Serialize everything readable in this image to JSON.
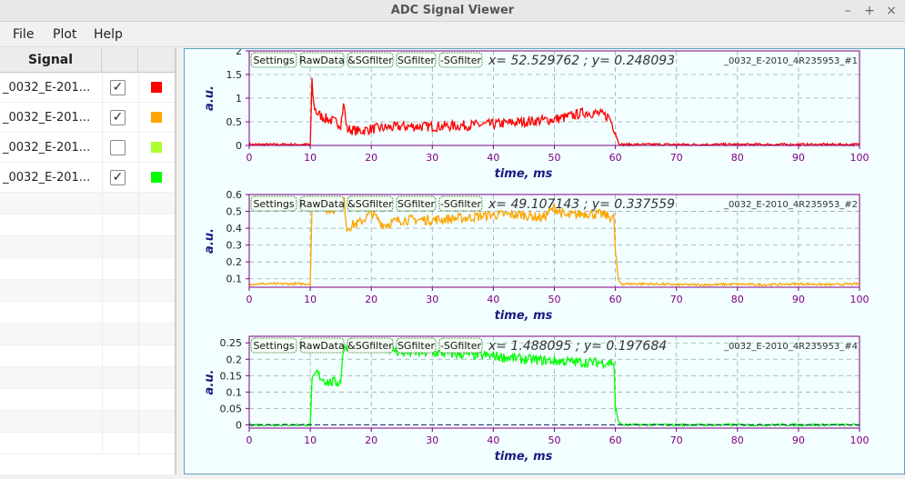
{
  "window": {
    "title": "ADC Signal Viewer"
  },
  "menu": {
    "file": "File",
    "plot": "Plot",
    "help": "Help"
  },
  "table": {
    "header": "Signal",
    "rows": [
      {
        "name": "_0032_E-201...",
        "checked": true,
        "color": "#ff0000"
      },
      {
        "name": "_0032_E-201...",
        "checked": true,
        "color": "#ffa500"
      },
      {
        "name": "_0032_E-201...",
        "checked": false,
        "color": "#adff2f"
      },
      {
        "name": "_0032_E-201...",
        "checked": true,
        "color": "#00ff00"
      }
    ]
  },
  "toolbar_buttons": [
    "Settings",
    "RawData",
    "&SGfilter",
    "SGfilter",
    "-SGfilter"
  ],
  "charts": [
    {
      "coords": "x= 52.529762 ; y= 0.248093",
      "signal": "_0032_E-2010_4R235953_#1",
      "color": "#ff0000",
      "xlabel": "time, ms",
      "ylabel": "a.u.",
      "xticks": [
        "0",
        "10",
        "20",
        "30",
        "40",
        "50",
        "60",
        "70",
        "80",
        "90",
        "100"
      ],
      "yticks": [
        "0",
        "0.5",
        "1",
        "1.5",
        "2"
      ]
    },
    {
      "coords": "x= 49.107143 ; y= 0.337559",
      "signal": "_0032_E-2010_4R235953_#2",
      "color": "#ffa500",
      "xlabel": "time, ms",
      "ylabel": "a.u.",
      "xticks": [
        "0",
        "10",
        "20",
        "30",
        "40",
        "50",
        "60",
        "70",
        "80",
        "90",
        "100"
      ],
      "yticks": [
        "0.1",
        "0.2",
        "0.3",
        "0.4",
        "0.5",
        "0.6"
      ]
    },
    {
      "coords": "x= 1.488095 ; y= 0.197684",
      "signal": "_0032_E-2010_4R235953_#4",
      "color": "#00ff00",
      "xlabel": "time, ms",
      "ylabel": "a.u.",
      "xticks": [
        "0",
        "10",
        "20",
        "30",
        "40",
        "50",
        "60",
        "70",
        "80",
        "90",
        "100"
      ],
      "yticks": [
        "0",
        "0.05",
        "0.1",
        "0.15",
        "0.2",
        "0.25"
      ]
    }
  ],
  "chart_data": [
    {
      "type": "line",
      "xlabel": "time, ms",
      "ylabel": "a.u.",
      "xlim": [
        0,
        100
      ],
      "ylim": [
        0,
        2
      ],
      "grid": true,
      "series": [
        {
          "name": "_0032_E-2010_4R235953_#1",
          "color": "#ff0000",
          "x": [
            0,
            10,
            10.3,
            10.5,
            11,
            12,
            13,
            14,
            15,
            15.5,
            16,
            18,
            20,
            25,
            30,
            35,
            40,
            45,
            50,
            52,
            55,
            57,
            59,
            60,
            60.5,
            61,
            70,
            80,
            90,
            100
          ],
          "y": [
            0.02,
            0.02,
            1.4,
            0.9,
            0.7,
            0.6,
            0.55,
            0.5,
            0.45,
            0.9,
            0.35,
            0.3,
            0.35,
            0.4,
            0.4,
            0.42,
            0.45,
            0.5,
            0.55,
            0.6,
            0.7,
            0.68,
            0.6,
            0.3,
            0.05,
            0.02,
            0.02,
            0.02,
            0.02,
            0.02
          ]
        }
      ]
    },
    {
      "type": "line",
      "xlabel": "time, ms",
      "ylabel": "a.u.",
      "xlim": [
        0,
        100
      ],
      "ylim": [
        0.05,
        0.6
      ],
      "grid": true,
      "series": [
        {
          "name": "_0032_E-2010_4R235953_#2",
          "color": "#ffa500",
          "x": [
            0,
            10,
            10.3,
            11,
            12,
            13,
            14,
            15,
            15.5,
            16,
            17,
            18,
            20,
            22,
            25,
            30,
            35,
            40,
            45,
            48,
            50,
            52,
            55,
            58,
            59.8,
            60,
            60.5,
            61,
            65,
            70,
            75,
            80,
            85,
            90,
            95,
            100
          ],
          "y": [
            0.07,
            0.07,
            0.55,
            0.57,
            0.53,
            0.5,
            0.52,
            0.55,
            0.58,
            0.4,
            0.42,
            0.43,
            0.49,
            0.42,
            0.45,
            0.45,
            0.46,
            0.48,
            0.48,
            0.46,
            0.52,
            0.47,
            0.49,
            0.48,
            0.46,
            0.25,
            0.09,
            0.07,
            0.07,
            0.065,
            0.065,
            0.068,
            0.065,
            0.07,
            0.065,
            0.07
          ]
        }
      ]
    },
    {
      "type": "line",
      "xlabel": "time, ms",
      "ylabel": "a.u.",
      "xlim": [
        0,
        100
      ],
      "ylim": [
        -0.01,
        0.27
      ],
      "grid": true,
      "series": [
        {
          "name": "_0032_E-2010_4R235953_#4",
          "color": "#00ff00",
          "x": [
            0,
            10,
            10.3,
            11,
            12,
            13,
            14,
            15,
            15.3,
            16,
            18,
            20,
            22,
            25,
            30,
            35,
            40,
            45,
            50,
            55,
            59.8,
            60,
            60.5,
            61,
            70,
            80,
            90,
            100
          ],
          "y": [
            0.0,
            0.0,
            0.13,
            0.16,
            0.14,
            0.13,
            0.13,
            0.13,
            0.22,
            0.24,
            0.25,
            0.245,
            0.24,
            0.22,
            0.22,
            0.215,
            0.21,
            0.2,
            0.195,
            0.19,
            0.19,
            0.05,
            0.01,
            0.0,
            0.0,
            0.0,
            0.0,
            0.0
          ]
        }
      ]
    }
  ]
}
